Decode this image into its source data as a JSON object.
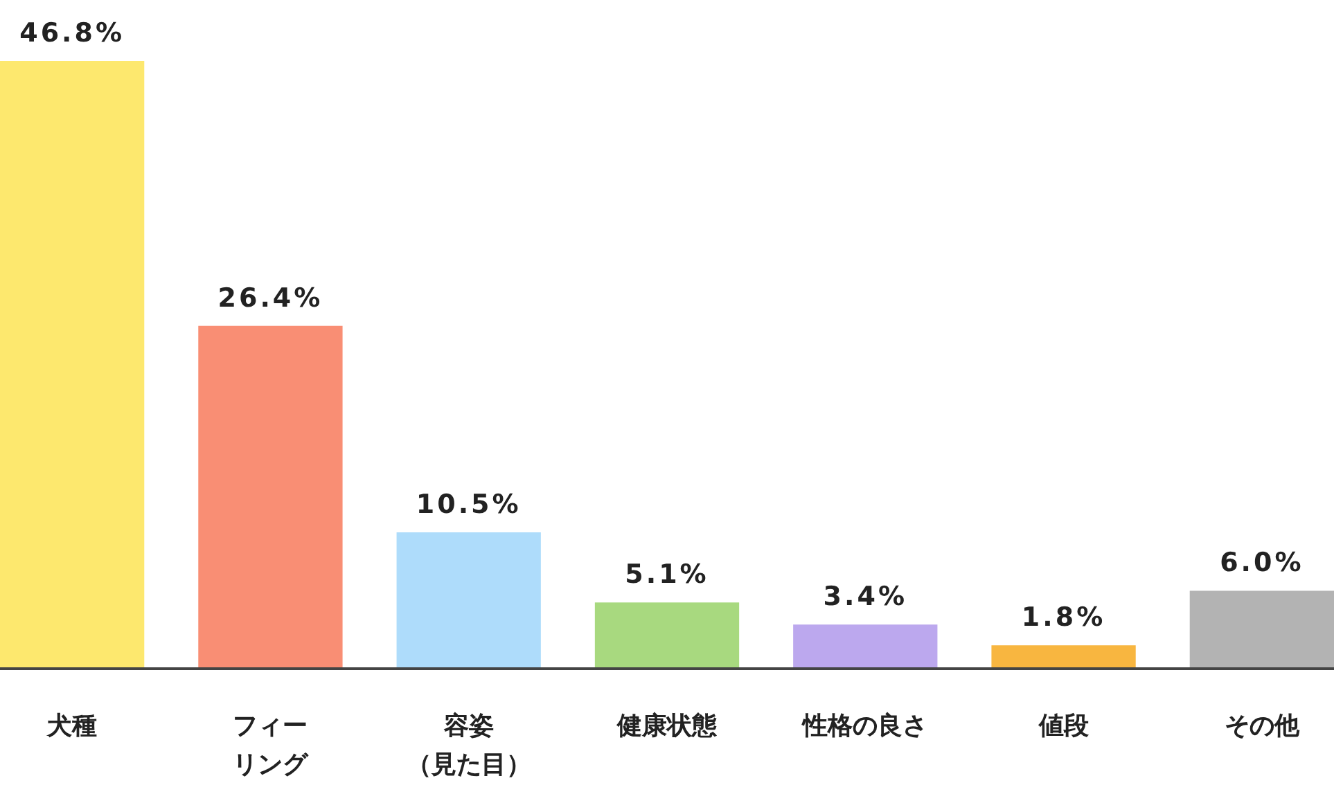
{
  "chart_data": {
    "type": "bar",
    "categories": [
      "犬種",
      "フィーリング",
      "容姿（見た目）",
      "健康状態",
      "性格の良さ",
      "値段",
      "その他"
    ],
    "values": [
      46.8,
      26.4,
      10.5,
      5.1,
      3.4,
      1.8,
      6.0
    ],
    "value_labels": [
      "46.8%",
      "26.4%",
      "10.5%",
      "5.1%",
      "3.4%",
      "1.8%",
      "6.0%"
    ],
    "colors": [
      "#fde86e",
      "#f98e74",
      "#aedcfb",
      "#a8d97f",
      "#bca8ee",
      "#f8b640",
      "#b3b3b3"
    ],
    "grid": false,
    "legend": false
  }
}
